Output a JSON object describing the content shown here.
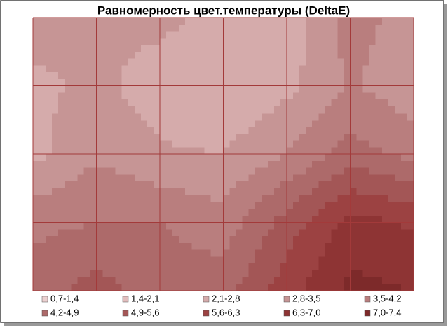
{
  "chart_data": {
    "type": "contour",
    "title": "Равномерность цвет.температуры (DeltaE)",
    "z": [
      [
        3.2,
        3.0,
        3.0,
        2.6,
        2.3,
        3.8,
        3.2
      ],
      [
        2.6,
        3.0,
        2.4,
        2.2,
        2.6,
        3.6,
        3.0
      ],
      [
        2.6,
        3.4,
        2.9,
        2.8,
        3.5,
        4.5,
        4.0
      ],
      [
        4.0,
        4.2,
        4.2,
        3.8,
        5.2,
        6.6,
        6.2
      ],
      [
        4.6,
        5.2,
        4.6,
        4.6,
        6.0,
        7.2,
        7.0
      ]
    ],
    "bands": [
      {
        "label": "0,7-1,4",
        "min": 0.7,
        "max": 1.4,
        "color": "#ecd0d0"
      },
      {
        "label": "1,4-2,1",
        "min": 1.4,
        "max": 2.1,
        "color": "#e2bdbd"
      },
      {
        "label": "2,1-2,8",
        "min": 2.1,
        "max": 2.8,
        "color": "#d5abab"
      },
      {
        "label": "2,8-3,5",
        "min": 2.8,
        "max": 3.5,
        "color": "#c69595"
      },
      {
        "label": "3,5-4,2",
        "min": 3.5,
        "max": 4.2,
        "color": "#b97e7e"
      },
      {
        "label": "4,2-4,9",
        "min": 4.2,
        "max": 4.9,
        "color": "#ad6a6a"
      },
      {
        "label": "4,9-5,6",
        "min": 4.9,
        "max": 5.6,
        "color": "#a35656"
      },
      {
        "label": "5,6-6,3",
        "min": 5.6,
        "max": 6.3,
        "color": "#9c4242"
      },
      {
        "label": "6,3-7,0",
        "min": 6.3,
        "max": 7.0,
        "color": "#8e3434"
      },
      {
        "label": "7,0-7,4",
        "min": 7.0,
        "max": 7.4,
        "color": "#7d2a2a"
      }
    ]
  }
}
